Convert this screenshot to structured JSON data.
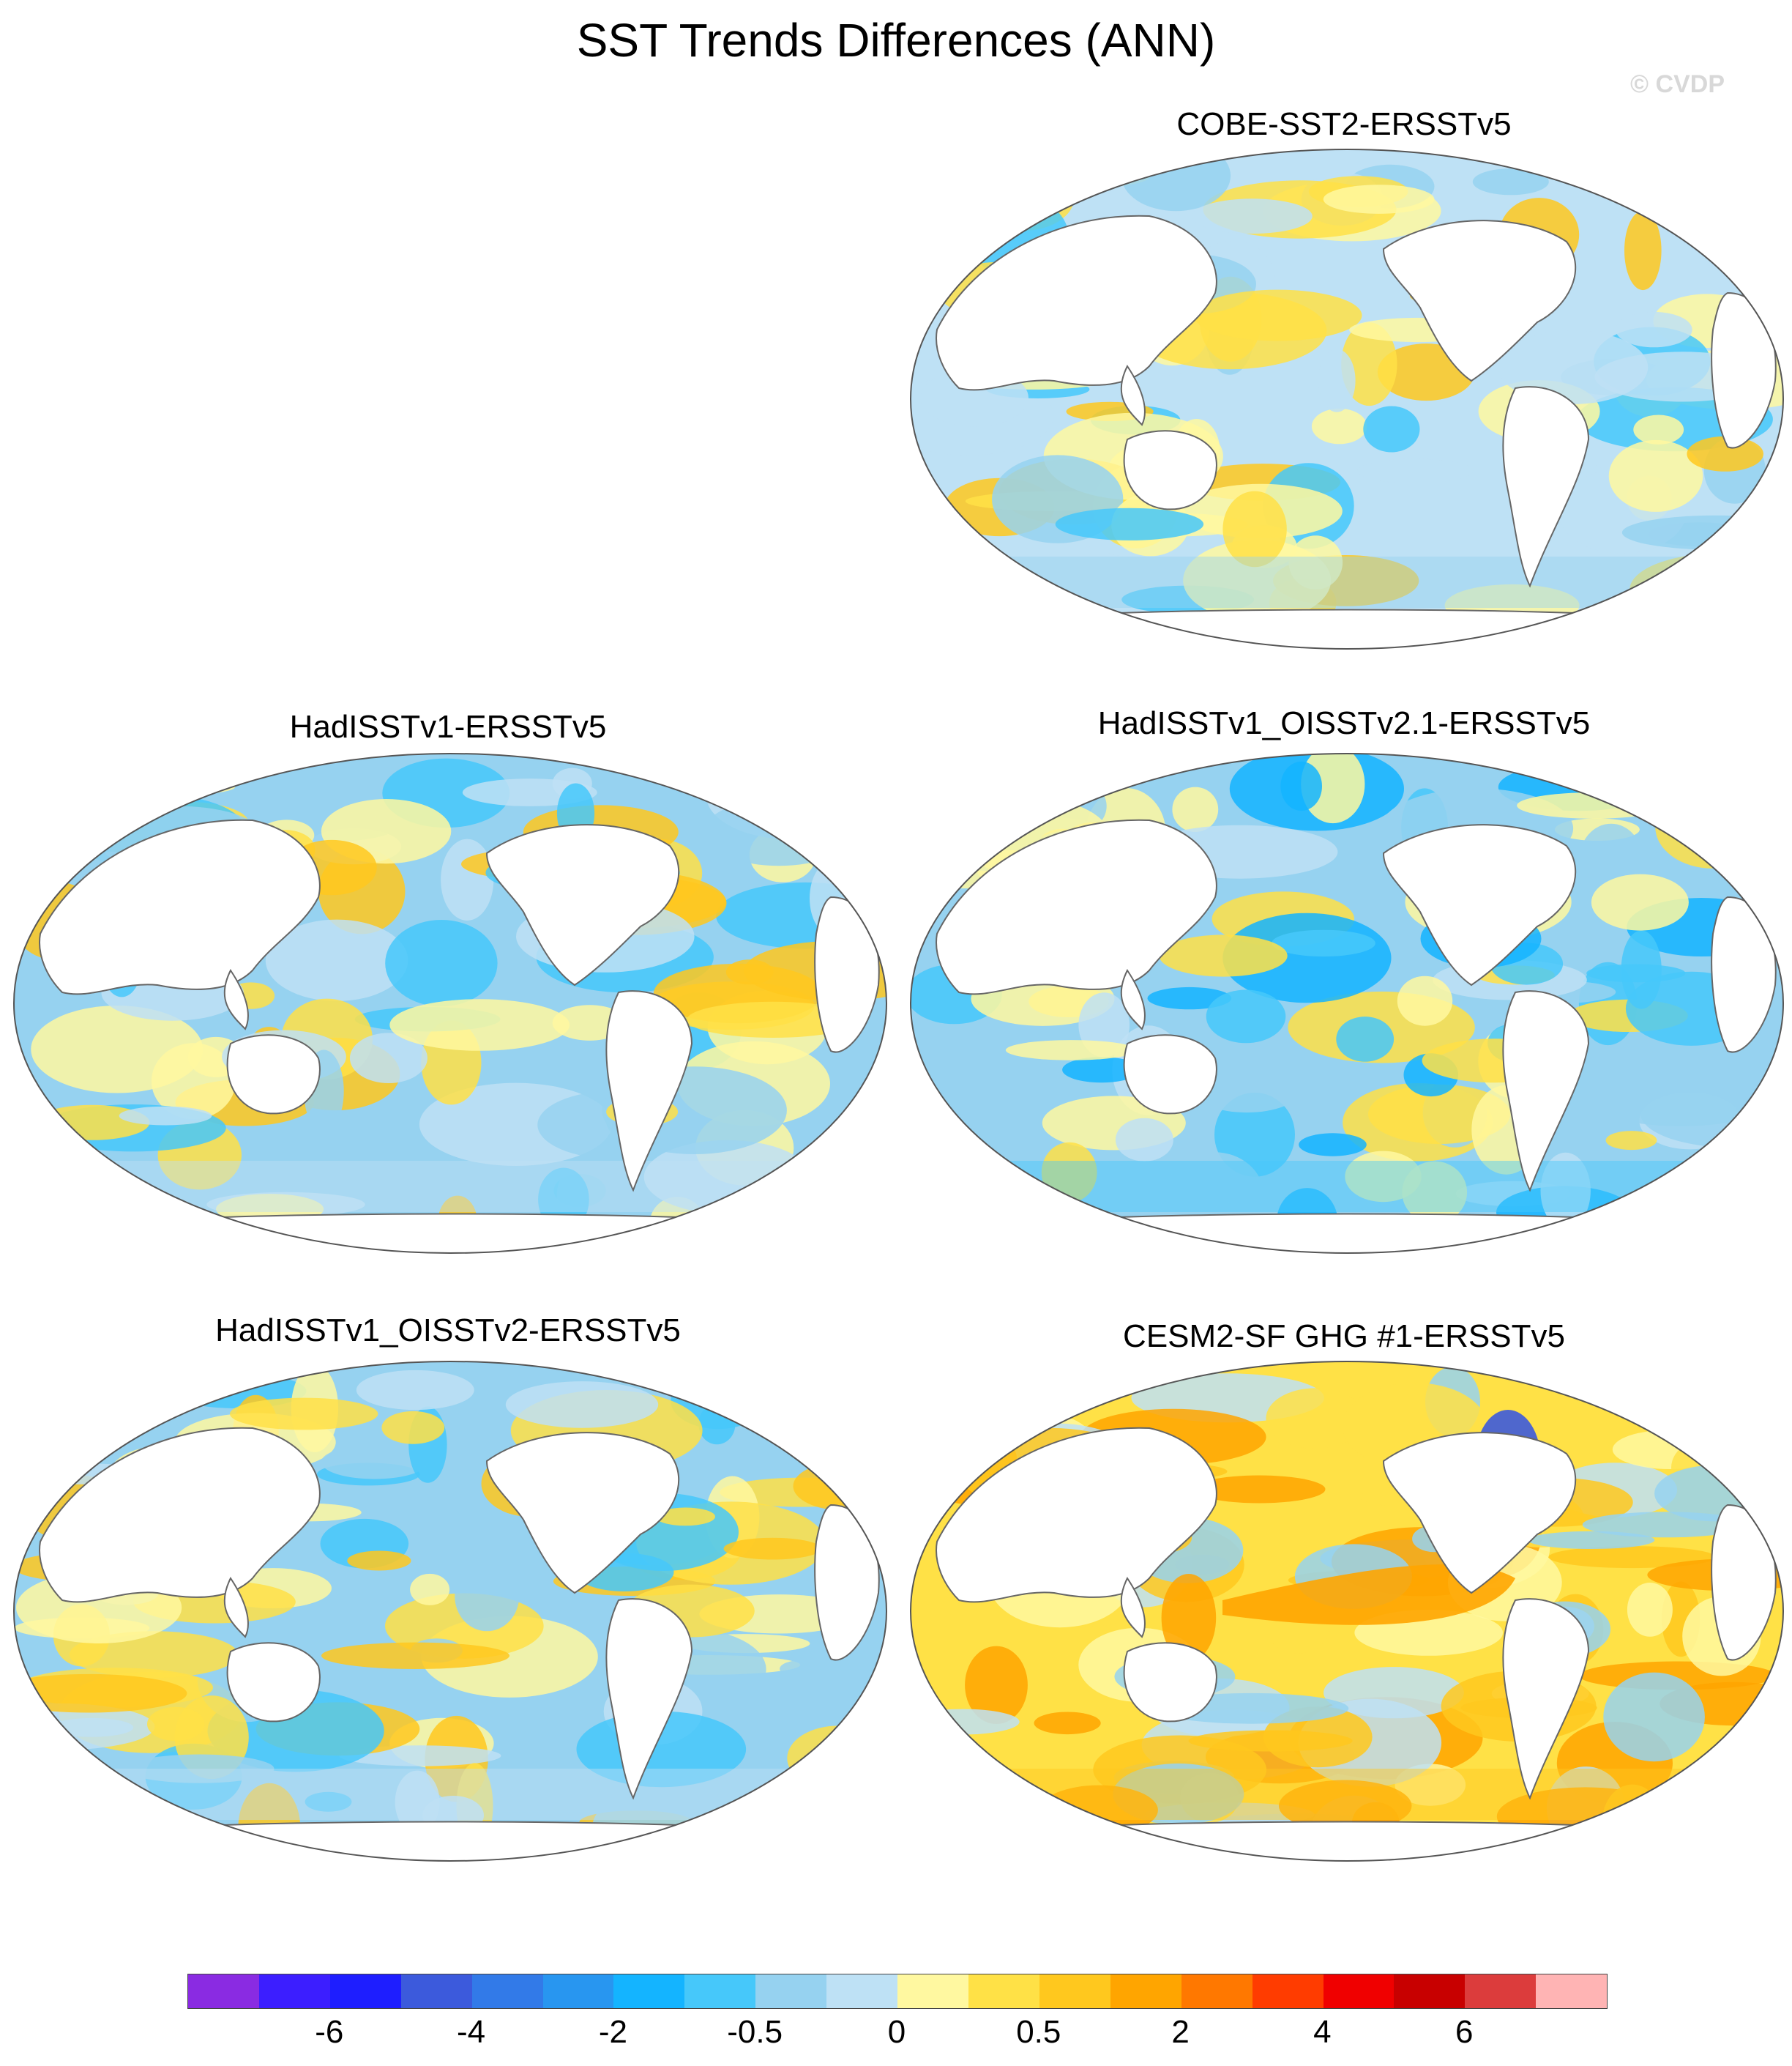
{
  "title": "SST Trends Differences (ANN)",
  "credit": "© CVDP",
  "panels": [
    {
      "id": "cobe",
      "label": "COBE-SST2-ERSSTv5"
    },
    {
      "id": "hadisst",
      "label": "HadISSTv1-ERSSTv5"
    },
    {
      "id": "hadoi21",
      "label": "HadISSTv1_OISSTv2.1-ERSSTv5"
    },
    {
      "id": "hadoi2",
      "label": "HadISSTv1_OISSTv2-ERSSTv5"
    },
    {
      "id": "cesm2",
      "label": "CESM2-SF GHG #1-ERSSTv5"
    }
  ],
  "colorbar": {
    "colors": [
      "#8a2be2",
      "#3c1eff",
      "#1e1eff",
      "#3c5adc",
      "#327ae8",
      "#2896f0",
      "#14b4ff",
      "#46c8fa",
      "#96d2f0",
      "#bee1f5",
      "#fff8a0",
      "#ffe146",
      "#ffc81e",
      "#ffa500",
      "#ff7800",
      "#ff3c00",
      "#f00000",
      "#c80000",
      "#dc3c3c",
      "#ffb4b4"
    ],
    "tick_labels": [
      "-6",
      "-4",
      "-2",
      "-0.5",
      "0",
      "0.5",
      "2",
      "4",
      "6"
    ]
  }
}
